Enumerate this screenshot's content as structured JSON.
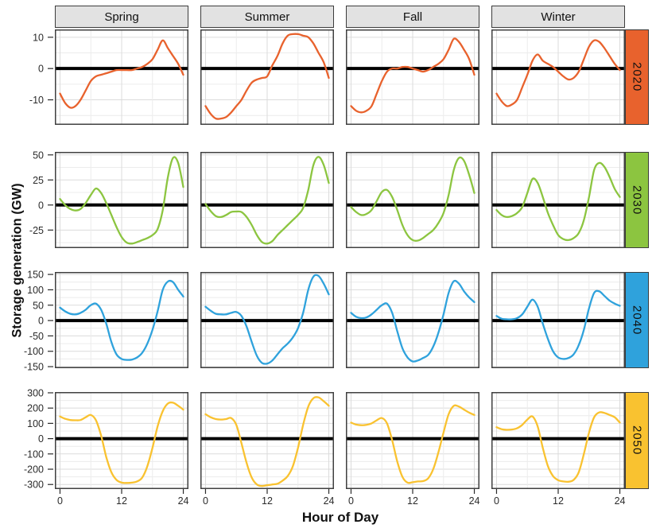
{
  "colors": {
    "panel_bg": "#FFFFFF",
    "panel_border": "#404040",
    "grid_major": "#DBDBDB",
    "grid_minor": "#ECECEC",
    "zero_line": "#000000",
    "strip_header_bg": "#E2E2E2",
    "strip_border": "#3C3C3C",
    "row_2020": "#E8622D",
    "row_2030": "#8CC540",
    "row_2040": "#2FA2DC",
    "row_2050": "#F9C230"
  },
  "chart_data": {
    "type": "line",
    "title": "",
    "x_label": "Hour of Day",
    "y_label": "Storage generation (GW)",
    "columns": [
      "Spring",
      "Summer",
      "Fall",
      "Winter"
    ],
    "x": [
      0,
      1,
      2,
      3,
      4,
      5,
      6,
      7,
      8,
      9,
      10,
      11,
      12,
      13,
      14,
      15,
      16,
      17,
      18,
      19,
      20,
      21,
      22,
      23,
      24
    ],
    "x_ticks": [
      0,
      12,
      24
    ],
    "x_minor": [
      6,
      18
    ],
    "xlim": [
      -1,
      25
    ],
    "grid": true,
    "zero_line": true,
    "rows": [
      {
        "name": "2020",
        "color": "#E8622D",
        "ylim": [
          -18,
          12.5
        ],
        "y_ticks": [
          10,
          0,
          -10
        ],
        "y_major_step": 10,
        "panels": {
          "Spring": [
            -8,
            -11,
            -12.5,
            -12,
            -10,
            -7,
            -4,
            -2.5,
            -2,
            -1.5,
            -1,
            -0.5,
            -0.5,
            -0.5,
            -0.5,
            0,
            0.5,
            1.5,
            3,
            6,
            9,
            6.5,
            4,
            1.5,
            -2
          ],
          "Summer": [
            -12,
            -14.5,
            -16,
            -16,
            -15.5,
            -14,
            -12,
            -10,
            -7,
            -4.5,
            -3.5,
            -3,
            -2.5,
            1,
            4,
            8,
            10.5,
            11,
            11,
            10.5,
            10,
            8,
            5,
            2,
            -3
          ],
          "Fall": [
            -12,
            -13.5,
            -14,
            -13.5,
            -12,
            -8,
            -4,
            -1,
            0,
            0,
            0.5,
            0.5,
            0,
            -0.5,
            -1,
            -0.5,
            0.5,
            1.5,
            3,
            6,
            9.5,
            8.5,
            6,
            3,
            -2
          ],
          "Winter": [
            -8,
            -10.5,
            -12,
            -11.5,
            -10,
            -6,
            -2,
            2.5,
            4.5,
            2.5,
            1.5,
            0.5,
            -1,
            -2.5,
            -3.5,
            -3,
            -1,
            3,
            7,
            9,
            8.5,
            6.5,
            4,
            1.5,
            -0.5
          ]
        }
      },
      {
        "name": "2030",
        "color": "#8CC540",
        "ylim": [
          -43,
          53
        ],
        "y_ticks": [
          50,
          25,
          0,
          -25
        ],
        "y_major_step": 25,
        "panels": {
          "Spring": [
            6,
            0,
            -4,
            -5.5,
            -4,
            2,
            10,
            16.5,
            12,
            2,
            -10,
            -22,
            -32,
            -37.5,
            -38.5,
            -37,
            -35,
            -33,
            -30,
            -24,
            -5,
            28,
            47,
            42,
            18
          ],
          "Summer": [
            1,
            -6,
            -11,
            -12,
            -10,
            -7,
            -6.5,
            -7,
            -12,
            -20,
            -30,
            -37,
            -38.5,
            -36,
            -30,
            -25,
            -20,
            -15,
            -10,
            -3,
            15,
            40,
            48,
            40,
            22
          ],
          "Fall": [
            -2,
            -7,
            -10,
            -9,
            -5,
            4,
            13,
            15,
            8,
            -5,
            -20,
            -30,
            -35,
            -35.5,
            -33,
            -29,
            -25,
            -18,
            -8,
            10,
            35,
            47,
            44,
            30,
            12
          ],
          "Winter": [
            -5,
            -10,
            -12,
            -11,
            -8,
            -2,
            12,
            26,
            22,
            8,
            -8,
            -20,
            -30,
            -34,
            -35,
            -33,
            -28,
            -15,
            8,
            35,
            42,
            38,
            28,
            16,
            8
          ]
        }
      },
      {
        "name": "2040",
        "color": "#2FA2DC",
        "ylim": [
          -155,
          158
        ],
        "y_ticks": [
          150,
          100,
          50,
          0,
          -50,
          -100,
          -150
        ],
        "y_major_step": 50,
        "panels": {
          "Spring": [
            42,
            30,
            22,
            20,
            25,
            35,
            50,
            55,
            35,
            -10,
            -70,
            -110,
            -125,
            -128,
            -127,
            -120,
            -105,
            -75,
            -30,
            30,
            100,
            127,
            125,
            100,
            78
          ],
          "Summer": [
            45,
            32,
            22,
            20,
            20,
            25,
            28,
            15,
            -20,
            -70,
            -115,
            -138,
            -140,
            -130,
            -110,
            -90,
            -75,
            -55,
            -25,
            25,
            100,
            143,
            145,
            120,
            85
          ],
          "Fall": [
            25,
            12,
            8,
            10,
            20,
            35,
            50,
            55,
            25,
            -35,
            -90,
            -120,
            -133,
            -130,
            -122,
            -112,
            -85,
            -40,
            20,
            90,
            128,
            120,
            95,
            75,
            60
          ],
          "Winter": [
            15,
            6,
            4,
            4,
            8,
            20,
            45,
            68,
            45,
            -10,
            -60,
            -100,
            -120,
            -125,
            -122,
            -110,
            -80,
            -30,
            40,
            90,
            95,
            80,
            65,
            55,
            48
          ]
        }
      },
      {
        "name": "2050",
        "color": "#F9C230",
        "ylim": [
          -330,
          305
        ],
        "y_ticks": [
          300,
          200,
          100,
          0,
          -100,
          -200,
          -300
        ],
        "y_major_step": 100,
        "panels": {
          "Spring": [
            145,
            130,
            122,
            120,
            122,
            140,
            155,
            120,
            20,
            -120,
            -220,
            -270,
            -288,
            -290,
            -288,
            -280,
            -255,
            -180,
            -60,
            80,
            180,
            230,
            235,
            215,
            190
          ],
          "Summer": [
            160,
            140,
            128,
            125,
            128,
            135,
            90,
            -30,
            -160,
            -255,
            -300,
            -310,
            -305,
            -300,
            -295,
            -275,
            -245,
            -180,
            -60,
            90,
            210,
            265,
            270,
            245,
            215
          ],
          "Fall": [
            105,
            92,
            88,
            90,
            100,
            120,
            135,
            100,
            -10,
            -150,
            -250,
            -288,
            -285,
            -280,
            -278,
            -260,
            -200,
            -90,
            40,
            160,
            215,
            210,
            190,
            170,
            155
          ],
          "Winter": [
            75,
            62,
            58,
            60,
            68,
            90,
            125,
            145,
            80,
            -60,
            -180,
            -245,
            -272,
            -280,
            -282,
            -270,
            -220,
            -100,
            40,
            140,
            172,
            168,
            155,
            140,
            105
          ]
        }
      }
    ]
  }
}
